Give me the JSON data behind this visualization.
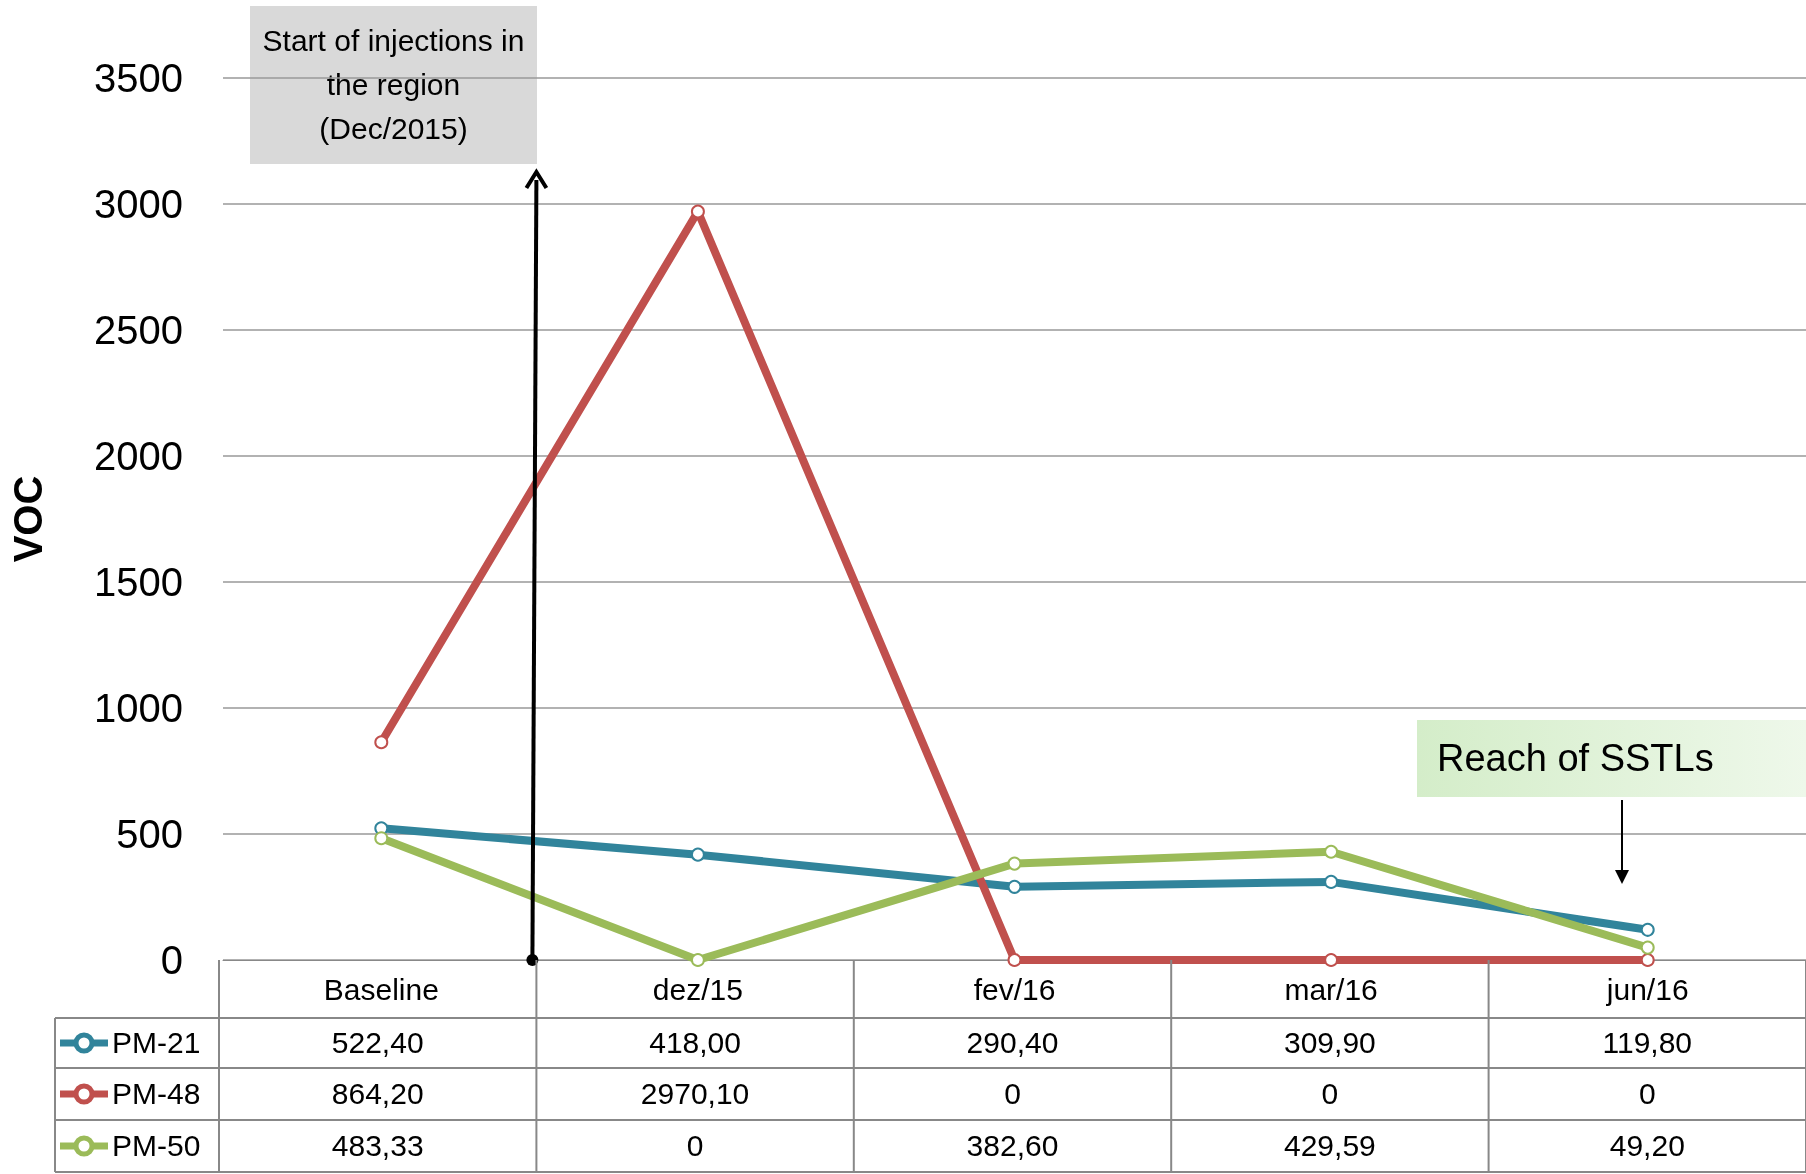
{
  "chart_data": {
    "type": "line",
    "ylabel": "VOC",
    "categories": [
      "Baseline",
      "dez/15",
      "fev/16",
      "mar/16",
      "jun/16"
    ],
    "series": [
      {
        "name": "PM-21",
        "color": "#31849b",
        "values": [
          522.4,
          418,
          290.4,
          309.9,
          119.8
        ],
        "value_labels": [
          "522,40",
          "418,00",
          "290,40",
          "309,90",
          "119,80"
        ]
      },
      {
        "name": "PM-48",
        "color": "#c0504d",
        "values": [
          864.2,
          2970.1,
          0,
          0,
          0
        ],
        "value_labels": [
          "864,20",
          "2970,10",
          "0",
          "0",
          "0"
        ]
      },
      {
        "name": "PM-50",
        "color": "#9bbb59",
        "values": [
          483.33,
          0,
          382.6,
          429.59,
          49.2
        ],
        "value_labels": [
          "483,33",
          "0",
          "382,60",
          "429,59",
          "49,20"
        ]
      }
    ],
    "ylim": [
      0,
      3500
    ],
    "yticks": [
      0,
      500,
      1000,
      1500,
      2000,
      2500,
      3000,
      3500
    ],
    "grid": "y",
    "marker": "circle",
    "line_style": "solid",
    "legend": "bottom left",
    "annotations": [
      "Start of injections in the region (Dec/2015)",
      "Reach of SSTLs"
    ]
  }
}
